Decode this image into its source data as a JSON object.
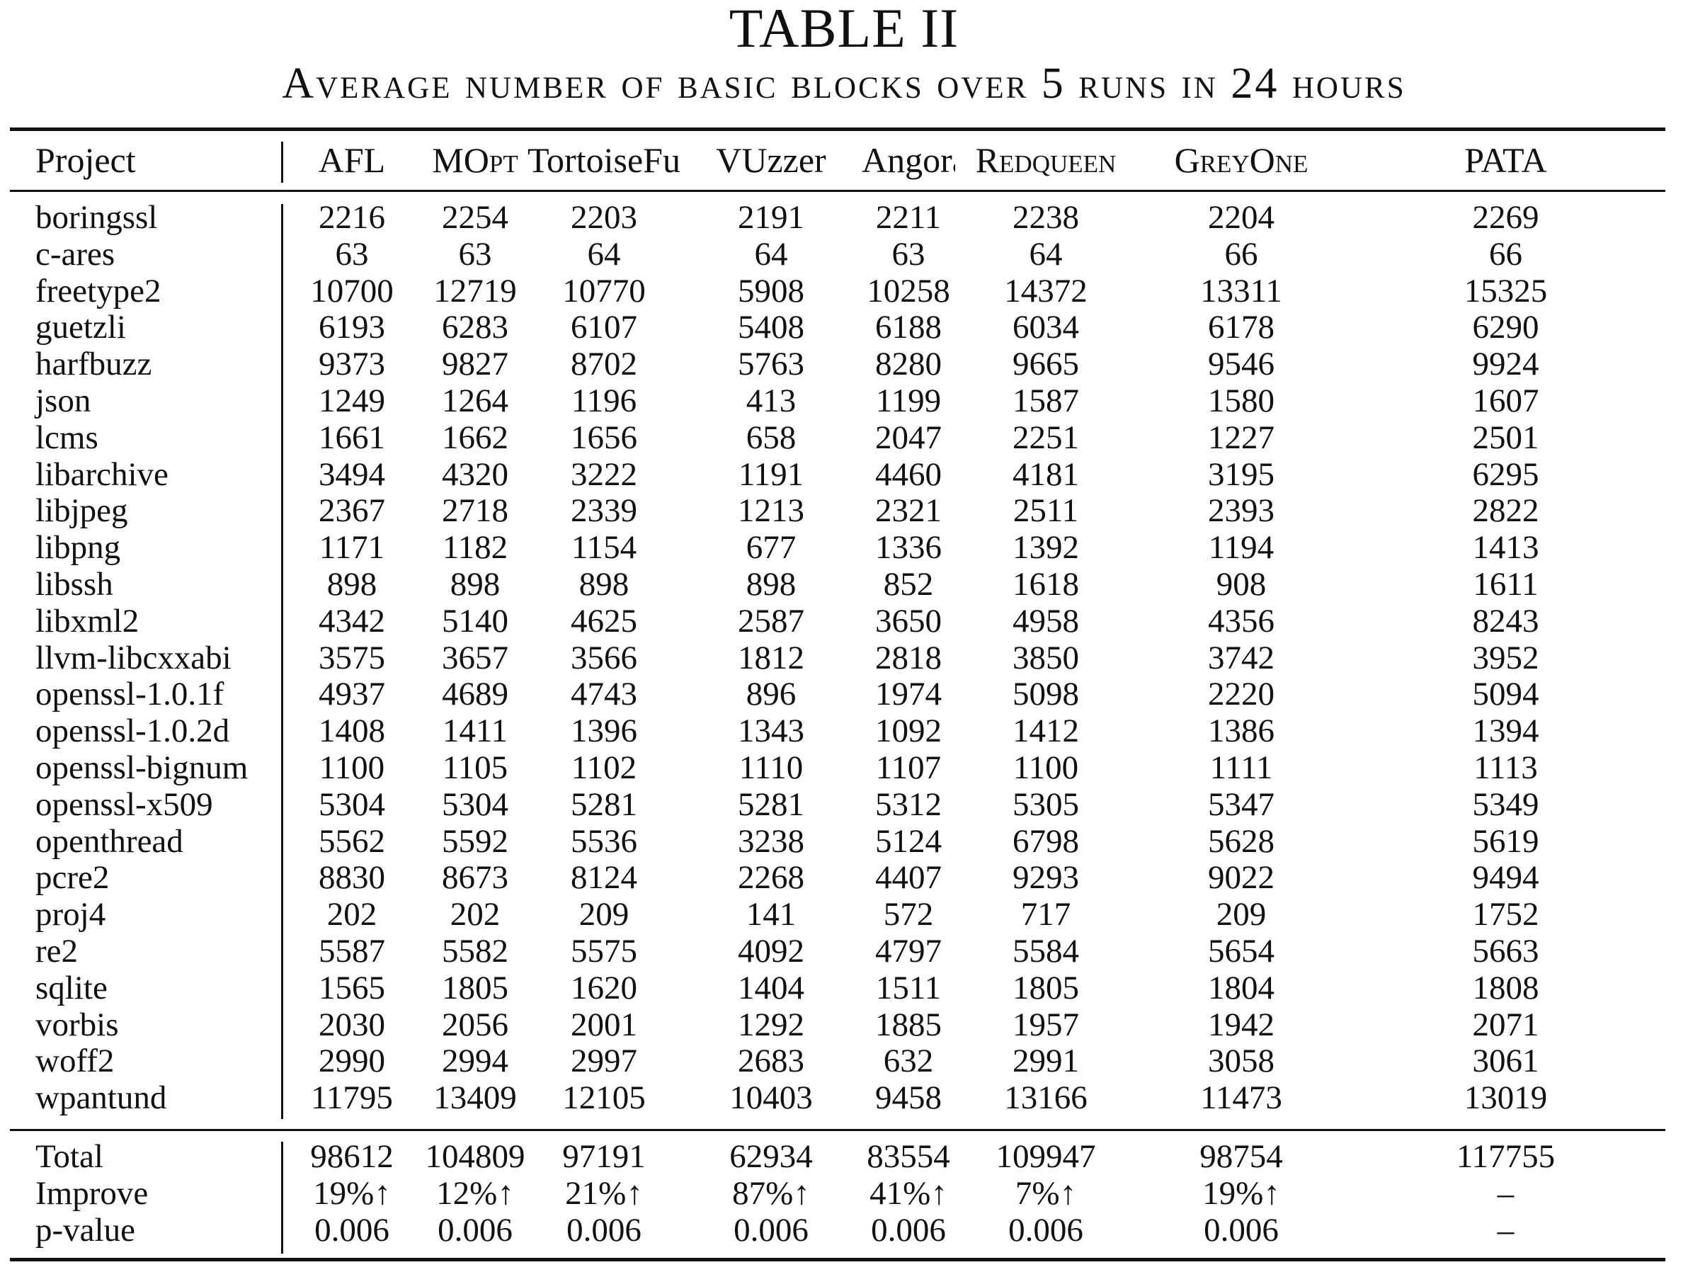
{
  "table": {
    "number": "TABLE II",
    "caption": "Average number of basic blocks over 5 runs in 24 hours",
    "columns": [
      "Project",
      "AFL",
      "MOpt",
      "TortoiseFuzz",
      "VUzzer",
      "Angora",
      "Redqueen",
      "GreyOne",
      "PATA"
    ],
    "rows": [
      [
        "boringssl",
        "2216",
        "2254",
        "2203",
        "2191",
        "2211",
        "2238",
        "2204",
        "2269"
      ],
      [
        "c-ares",
        "63",
        "63",
        "64",
        "64",
        "63",
        "64",
        "66",
        "66"
      ],
      [
        "freetype2",
        "10700",
        "12719",
        "10770",
        "5908",
        "10258",
        "14372",
        "13311",
        "15325"
      ],
      [
        "guetzli",
        "6193",
        "6283",
        "6107",
        "5408",
        "6188",
        "6034",
        "6178",
        "6290"
      ],
      [
        "harfbuzz",
        "9373",
        "9827",
        "8702",
        "5763",
        "8280",
        "9665",
        "9546",
        "9924"
      ],
      [
        "json",
        "1249",
        "1264",
        "1196",
        "413",
        "1199",
        "1587",
        "1580",
        "1607"
      ],
      [
        "lcms",
        "1661",
        "1662",
        "1656",
        "658",
        "2047",
        "2251",
        "1227",
        "2501"
      ],
      [
        "libarchive",
        "3494",
        "4320",
        "3222",
        "1191",
        "4460",
        "4181",
        "3195",
        "6295"
      ],
      [
        "libjpeg",
        "2367",
        "2718",
        "2339",
        "1213",
        "2321",
        "2511",
        "2393",
        "2822"
      ],
      [
        "libpng",
        "1171",
        "1182",
        "1154",
        "677",
        "1336",
        "1392",
        "1194",
        "1413"
      ],
      [
        "libssh",
        "898",
        "898",
        "898",
        "898",
        "852",
        "1618",
        "908",
        "1611"
      ],
      [
        "libxml2",
        "4342",
        "5140",
        "4625",
        "2587",
        "3650",
        "4958",
        "4356",
        "8243"
      ],
      [
        "llvm-libcxxabi",
        "3575",
        "3657",
        "3566",
        "1812",
        "2818",
        "3850",
        "3742",
        "3952"
      ],
      [
        "openssl-1.0.1f",
        "4937",
        "4689",
        "4743",
        "896",
        "1974",
        "5098",
        "2220",
        "5094"
      ],
      [
        "openssl-1.0.2d",
        "1408",
        "1411",
        "1396",
        "1343",
        "1092",
        "1412",
        "1386",
        "1394"
      ],
      [
        "openssl-bignum",
        "1100",
        "1105",
        "1102",
        "1110",
        "1107",
        "1100",
        "1111",
        "1113"
      ],
      [
        "openssl-x509",
        "5304",
        "5304",
        "5281",
        "5281",
        "5312",
        "5305",
        "5347",
        "5349"
      ],
      [
        "openthread",
        "5562",
        "5592",
        "5536",
        "3238",
        "5124",
        "6798",
        "5628",
        "5619"
      ],
      [
        "pcre2",
        "8830",
        "8673",
        "8124",
        "2268",
        "4407",
        "9293",
        "9022",
        "9494"
      ],
      [
        "proj4",
        "202",
        "202",
        "209",
        "141",
        "572",
        "717",
        "209",
        "1752"
      ],
      [
        "re2",
        "5587",
        "5582",
        "5575",
        "4092",
        "4797",
        "5584",
        "5654",
        "5663"
      ],
      [
        "sqlite",
        "1565",
        "1805",
        "1620",
        "1404",
        "1511",
        "1805",
        "1804",
        "1808"
      ],
      [
        "vorbis",
        "2030",
        "2056",
        "2001",
        "1292",
        "1885",
        "1957",
        "1942",
        "2071"
      ],
      [
        "woff2",
        "2990",
        "2994",
        "2997",
        "2683",
        "632",
        "2991",
        "3058",
        "3061"
      ],
      [
        "wpantund",
        "11795",
        "13409",
        "12105",
        "10403",
        "9458",
        "13166",
        "11473",
        "13019"
      ]
    ],
    "summary": [
      [
        "Total",
        "98612",
        "104809",
        "97191",
        "62934",
        "83554",
        "109947",
        "98754",
        "117755"
      ],
      [
        "Improve",
        "19%↑",
        "12%↑",
        "21%↑",
        "87%↑",
        "41%↑",
        "7%↑",
        "19%↑",
        "–"
      ],
      [
        "p-value",
        "0.006",
        "0.006",
        "0.006",
        "0.006",
        "0.006",
        "0.006",
        "0.006",
        "–"
      ]
    ]
  }
}
